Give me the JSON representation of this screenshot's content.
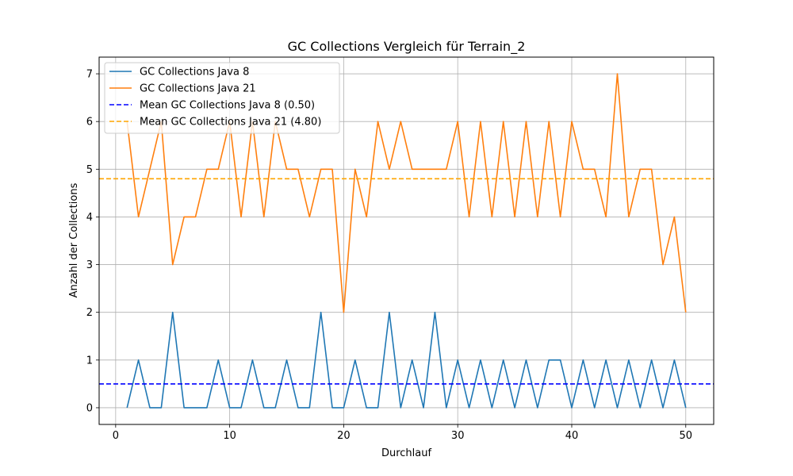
{
  "chart_data": {
    "type": "line",
    "title": "GC Collections Vergleich für Terrain_2",
    "xlabel": "Durchlauf",
    "ylabel": "Anzahl der Collections",
    "xlim": [
      -1.45,
      52.45
    ],
    "ylim": [
      -0.35,
      7.35
    ],
    "xticks": [
      0,
      10,
      20,
      30,
      40,
      50
    ],
    "yticks": [
      0,
      1,
      2,
      3,
      4,
      5,
      6,
      7
    ],
    "grid": true,
    "legend_position": "top-left",
    "x": [
      1,
      2,
      3,
      4,
      5,
      6,
      7,
      8,
      9,
      10,
      11,
      12,
      13,
      14,
      15,
      16,
      17,
      18,
      19,
      20,
      21,
      22,
      23,
      24,
      25,
      26,
      27,
      28,
      29,
      30,
      31,
      32,
      33,
      34,
      35,
      36,
      37,
      38,
      39,
      40,
      41,
      42,
      43,
      44,
      45,
      46,
      47,
      48,
      49,
      50
    ],
    "series": [
      {
        "name": "GC Collections Java 8",
        "color": "#1f77b4",
        "style": "solid",
        "values": [
          0,
          1,
          0,
          0,
          2,
          0,
          0,
          0,
          1,
          0,
          0,
          1,
          0,
          0,
          1,
          0,
          0,
          2,
          0,
          0,
          1,
          0,
          0,
          2,
          0,
          1,
          0,
          2,
          0,
          1,
          0,
          1,
          0,
          1,
          0,
          1,
          0,
          1,
          1,
          0,
          1,
          0,
          1,
          0,
          1,
          0,
          1,
          0,
          1,
          0
        ]
      },
      {
        "name": "GC Collections Java 21",
        "color": "#ff7f0e",
        "style": "solid",
        "values": [
          6,
          4,
          5,
          6,
          3,
          4,
          4,
          5,
          5,
          6,
          4,
          6,
          4,
          6,
          5,
          5,
          4,
          5,
          5,
          2,
          5,
          4,
          6,
          5,
          6,
          5,
          5,
          5,
          5,
          6,
          4,
          6,
          4,
          6,
          4,
          6,
          4,
          6,
          4,
          6,
          5,
          5,
          4,
          7,
          4,
          5,
          5,
          3,
          4,
          2
        ]
      }
    ],
    "reference_lines": [
      {
        "name": "Mean GC Collections Java 8 (0.50)",
        "value": 0.5,
        "color": "#0000ff",
        "style": "dashed"
      },
      {
        "name": "Mean GC Collections Java 21 (4.80)",
        "value": 4.8,
        "color": "#ffa500",
        "style": "dashed"
      }
    ]
  }
}
